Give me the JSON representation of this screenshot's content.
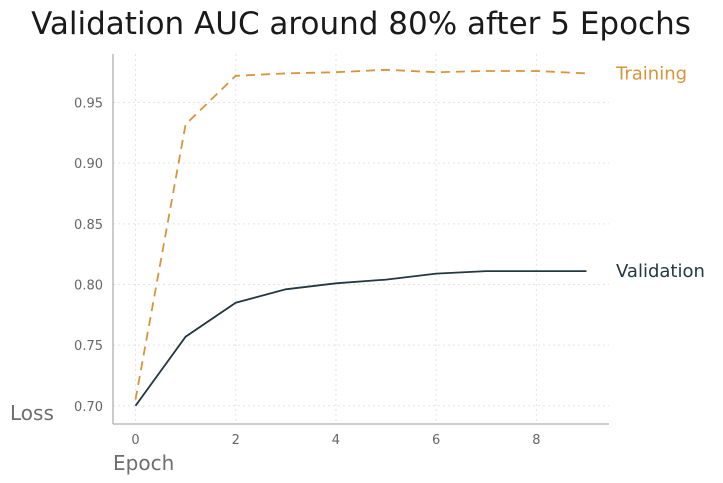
{
  "chart_data": {
    "type": "line",
    "title": "Validation AUC around 80% after 5 Epochs",
    "xlabel": "Epoch",
    "ylabel": "Loss",
    "x": [
      0,
      1,
      2,
      3,
      4,
      5,
      6,
      7,
      8,
      9
    ],
    "xlim": [
      -0.45,
      9.45
    ],
    "ylim": [
      0.685,
      0.99
    ],
    "xticks": [
      0,
      2,
      4,
      6,
      8
    ],
    "xtick_labels": [
      "0",
      "2",
      "4",
      "6",
      "8"
    ],
    "yticks": [
      0.7,
      0.75,
      0.8,
      0.85,
      0.9,
      0.95
    ],
    "ytick_labels": [
      "0.70",
      "0.75",
      "0.80",
      "0.85",
      "0.90",
      "0.95"
    ],
    "grid": true,
    "legend": "none (series labeled at right end of lines)",
    "series": [
      {
        "name": "Training",
        "values": [
          0.705,
          0.932,
          0.972,
          0.974,
          0.975,
          0.977,
          0.975,
          0.976,
          0.976,
          0.974
        ],
        "color": "#D9943A",
        "style": "dashed"
      },
      {
        "name": "Validation",
        "values": [
          0.7,
          0.757,
          0.785,
          0.796,
          0.801,
          0.804,
          0.809,
          0.811,
          0.811,
          0.811
        ],
        "color": "#24383F",
        "style": "solid"
      }
    ]
  }
}
